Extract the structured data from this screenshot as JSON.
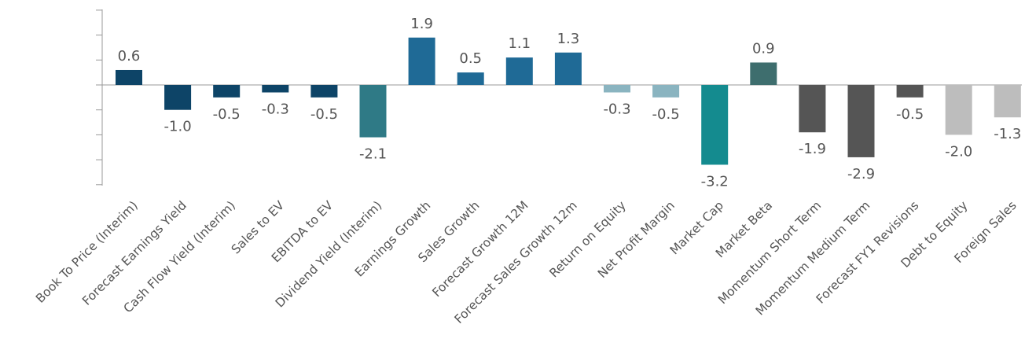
{
  "chart_data": {
    "type": "bar",
    "title": "",
    "xlabel": "",
    "ylabel": "",
    "ylim": [
      -4.0,
      3.0
    ],
    "grid": false,
    "categories": [
      "Book To Price (Interim)",
      "Forecast Earnings Yield",
      "Cash Flow Yield (Interim)",
      "Sales to EV",
      "EBITDA to EV",
      "Dividend Yield (Interim)",
      "Earnings Growth",
      "Sales Growth",
      "Forecast Growth 12M",
      "Forecast Sales Growth 12m",
      "Return on Equity",
      "Net Profit Margin",
      "Market Cap",
      "Market Beta",
      "Momentum Short Term",
      "Momentum Medium Term",
      "Forecast FY1 Revisions",
      "Debt to Equity",
      "Foreign Sales"
    ],
    "values": [
      0.6,
      -1.0,
      -0.5,
      -0.3,
      -0.5,
      -2.1,
      1.9,
      0.5,
      1.1,
      1.3,
      -0.3,
      -0.5,
      -3.2,
      0.9,
      -1.9,
      -2.9,
      -0.5,
      -2.0,
      -1.3
    ],
    "value_labels": [
      "0.6",
      "-1.0",
      "-0.5",
      "-0.3",
      "-0.5",
      "-2.1",
      "1.9",
      "0.5",
      "1.1",
      "1.3",
      "-0.3",
      "-0.5",
      "-3.2",
      "0.9",
      "-1.9",
      "-2.9",
      "-0.5",
      "-2.0",
      "-1.3"
    ],
    "colors": [
      "#0d4467",
      "#0d4467",
      "#0d4467",
      "#0d4467",
      "#0d4467",
      "#2f7a86",
      "#1f6a96",
      "#1f6a96",
      "#1f6a96",
      "#1f6a96",
      "#8ab4c0",
      "#8ab4c0",
      "#148b8f",
      "#3e6e6e",
      "#555555",
      "#555555",
      "#555555",
      "#bdbdbd",
      "#bdbdbd"
    ]
  }
}
